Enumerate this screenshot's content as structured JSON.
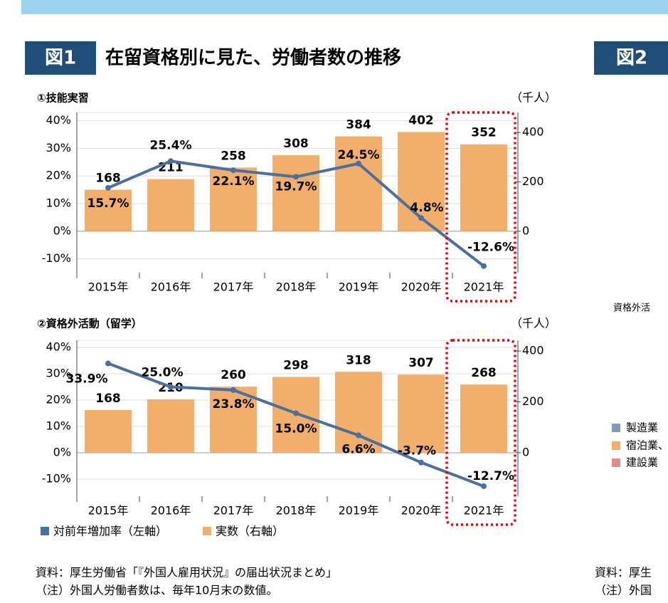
{
  "figure": {
    "label": "図1",
    "title": "在留資格別に見た、労働者数の推移",
    "next_label": "図2",
    "next_texts": [
      "資格外活",
      "製造業",
      "宿泊業、",
      "建設業",
      "資料：厚生",
      "（注）外国"
    ]
  },
  "notes": [
    "資料：厚生労働省「『外国人雇用状況』の届出状況まとめ」",
    "（注）外国人労働者数は、毎年10月末の数値。"
  ],
  "chart_data": [
    {
      "type": "combo",
      "subtitle": "①技能実習",
      "y2_label": "（千人）",
      "categories": [
        "2015年",
        "2016年",
        "2017年",
        "2018年",
        "2019年",
        "2020年",
        "2021年"
      ],
      "series": [
        {
          "type": "bar",
          "axis": "y2",
          "color": "#f2ae6b",
          "values": [
            168,
            211,
            258,
            308,
            384,
            402,
            352
          ]
        },
        {
          "type": "line",
          "color": "#4b6f9e",
          "values": [
            15.7,
            25.4,
            22.1,
            19.7,
            24.5,
            4.8,
            -12.6
          ],
          "value_labels": [
            "15.7%",
            "25.4%",
            "22.1%",
            "19.7%",
            "24.5%",
            "4.8%",
            "-12.6%"
          ]
        }
      ],
      "ylim": [
        -15,
        43
      ],
      "yticks": [
        {
          "value": -10,
          "label": "-10%"
        },
        {
          "value": 0,
          "label": "0%"
        },
        {
          "value": 10,
          "label": "10%"
        },
        {
          "value": 20,
          "label": "20%"
        },
        {
          "value": 30,
          "label": "30%"
        },
        {
          "value": 40,
          "label": "40%"
        }
      ],
      "y2lim": [
        -168,
        481
      ],
      "y2ticks": [
        0,
        200,
        400
      ],
      "grid": true
    },
    {
      "type": "combo",
      "subtitle": "②資格外活動（留学）",
      "y2_label": "（千人）",
      "categories": [
        "2015年",
        "2016年",
        "2017年",
        "2018年",
        "2019年",
        "2020年",
        "2021年"
      ],
      "series": [
        {
          "name": "実数（右軸）",
          "type": "bar",
          "axis": "y2",
          "color": "#f2ae6b",
          "values": [
            168,
            210,
            260,
            298,
            318,
            307,
            268
          ]
        },
        {
          "name": "対前年増加率（左軸）",
          "type": "line",
          "color": "#4b6f9e",
          "values": [
            33.9,
            25.0,
            23.8,
            15.0,
            6.6,
            -3.7,
            -12.7
          ],
          "value_labels": [
            "33.9%",
            "25.0%",
            "23.8%",
            "15.0%",
            "6.6%",
            "-3.7%",
            "-12.7%"
          ]
        }
      ],
      "ylim": [
        -16.5,
        42.7
      ],
      "yticks": [
        {
          "value": -10,
          "label": "-10%"
        },
        {
          "value": 0,
          "label": "0%"
        },
        {
          "value": 10,
          "label": "10%"
        },
        {
          "value": 20,
          "label": "20%"
        },
        {
          "value": 30,
          "label": "30%"
        },
        {
          "value": 40,
          "label": "40%"
        }
      ],
      "y2lim": [
        -171,
        442
      ],
      "y2ticks": [
        0,
        200,
        400
      ],
      "grid": true
    }
  ]
}
